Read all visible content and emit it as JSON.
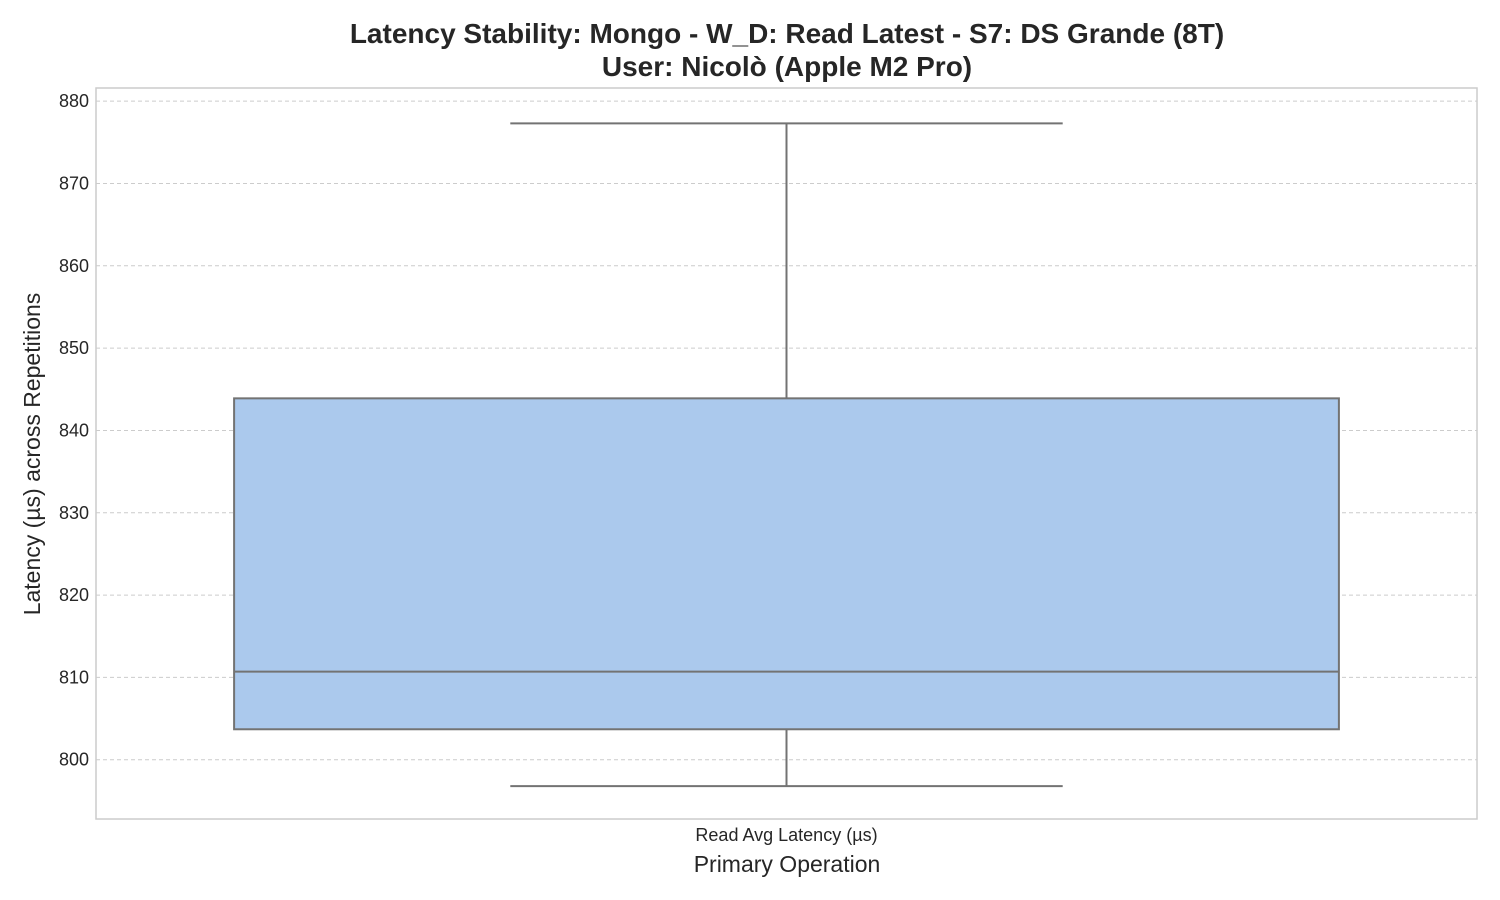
{
  "chart_data": {
    "type": "box",
    "title_line1": "Latency Stability: Mongo - W_D: Read Latest - S7: DS Grande (8T)",
    "title_line2": "User: Nicolò (Apple M2 Pro)",
    "xlabel": "Primary Operation",
    "ylabel": "Latency (µs) across Repetitions",
    "categories": [
      "Read Avg Latency (µs)"
    ],
    "boxes": [
      {
        "category": "Read Avg Latency (µs)",
        "whisker_low": 796.8,
        "q1": 803.7,
        "median": 810.7,
        "q3": 843.9,
        "whisker_high": 877.3
      }
    ],
    "ylim": [
      792.8,
      881.6
    ],
    "yticks": [
      800,
      810,
      820,
      830,
      840,
      850,
      860,
      870,
      880
    ],
    "grid": "y-dashed",
    "colors": {
      "box_fill": "#abc9ed",
      "box_edge": "#737373",
      "grid": "#cccccc",
      "frame": "#cccccc"
    }
  }
}
